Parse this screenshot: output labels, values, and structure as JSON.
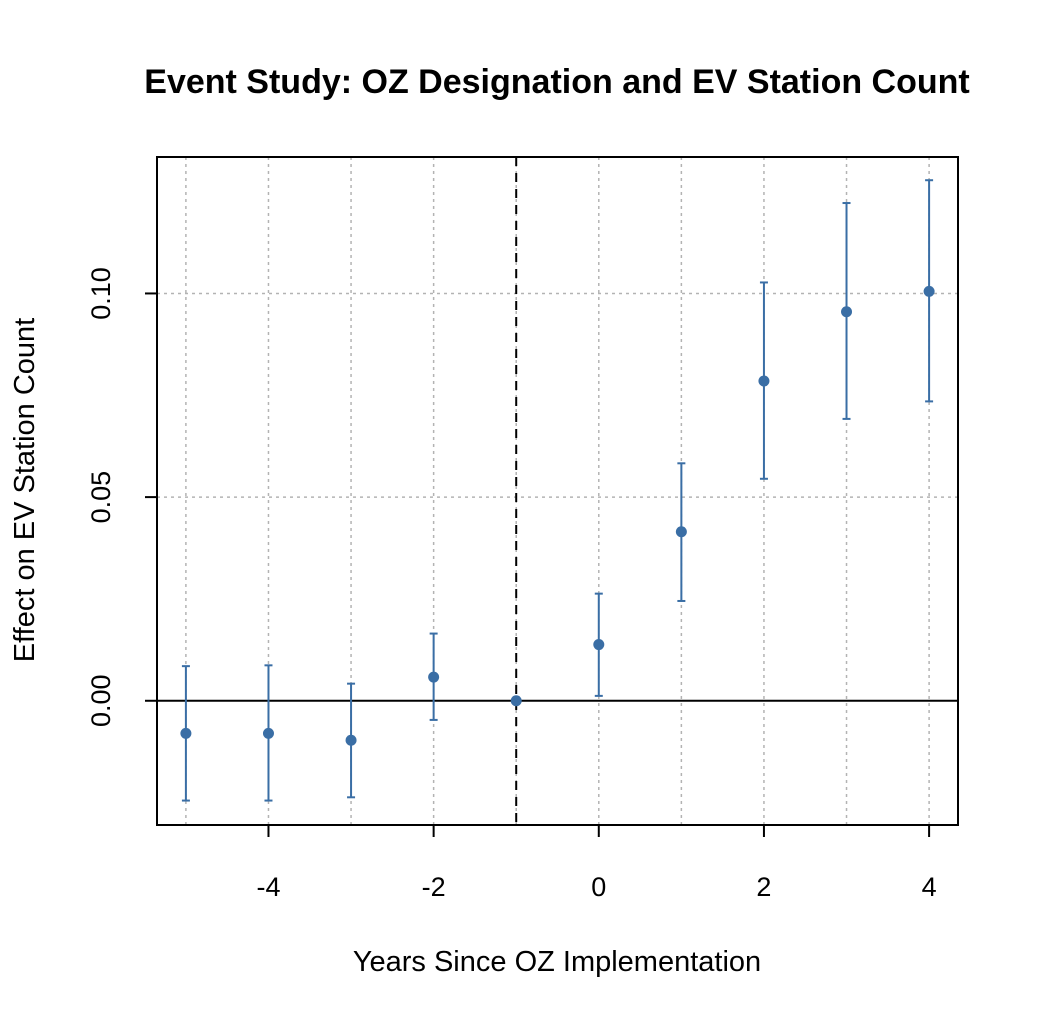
{
  "chart_data": {
    "type": "scatter",
    "title": "Event Study: OZ Designation and EV Station Count",
    "xlabel": "Years Since OZ Implementation",
    "ylabel": "Effect on EV Station Count",
    "xlim": [
      -5.35,
      4.35
    ],
    "ylim": [
      -0.0305,
      0.1335
    ],
    "x_ticks": [
      -4,
      -2,
      0,
      2,
      4
    ],
    "x_tick_labels": [
      "-4",
      "-2",
      "0",
      "2",
      "4"
    ],
    "y_ticks": [
      0.0,
      0.05,
      0.1
    ],
    "y_tick_labels": [
      "0.00",
      "0.05",
      "0.10"
    ],
    "grid": true,
    "reference_lines": {
      "horizontal_y": 0,
      "vertical_x": -1
    },
    "series": [
      {
        "x": [
          -5,
          -4,
          -3,
          -2,
          -1,
          0,
          1,
          2,
          3,
          4
        ],
        "estimate": [
          -0.008,
          -0.008,
          -0.0097,
          0.0058,
          0.0,
          0.0138,
          0.0415,
          0.0785,
          0.0955,
          0.1005
        ],
        "ci_low": [
          -0.0245,
          -0.0245,
          -0.0237,
          -0.0047,
          0.0,
          0.0012,
          0.0245,
          0.0545,
          0.0692,
          0.0735
        ],
        "ci_high": [
          0.0085,
          0.0087,
          0.0042,
          0.0165,
          0.0,
          0.0263,
          0.0583,
          0.1027,
          0.1222,
          0.1278
        ]
      }
    ],
    "colors": {
      "points": "#3a6ea5",
      "grid": "#b3b3b3",
      "axis": "#000000"
    }
  }
}
